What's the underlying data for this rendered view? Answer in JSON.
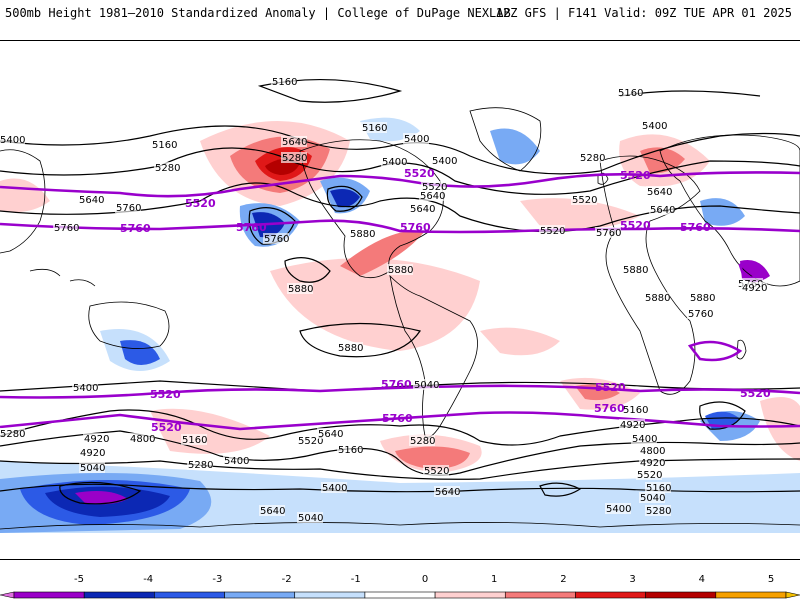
{
  "header": {
    "title": "500mb Height 1981–2010 Standardized Anomaly | College of DuPage NEXLAB",
    "run_info": "12Z GFS | F141 Valid: 09Z TUE APR 01 2025"
  },
  "colorbar": {
    "ticks": [
      "-5",
      "-4",
      "-3",
      "-2",
      "-1",
      "0",
      "1",
      "2",
      "3",
      "4",
      "5"
    ],
    "bins": [
      {
        "from": -5,
        "to": -4,
        "color": "#9a00c8"
      },
      {
        "from": -4,
        "to": -3,
        "color": "#0c28b4"
      },
      {
        "from": -3,
        "to": -2,
        "color": "#2c5ae6"
      },
      {
        "from": -2,
        "to": -1,
        "color": "#78aaf4"
      },
      {
        "from": -1,
        "to": 0,
        "color": "#c6e0fc"
      },
      {
        "from": 0,
        "to": 1,
        "color": "#ffffff"
      },
      {
        "from": 1,
        "to": 2,
        "color": "#ffd0d0"
      },
      {
        "from": 2,
        "to": 3,
        "color": "#f47a7a"
      },
      {
        "from": 3,
        "to": 4,
        "color": "#e01818"
      },
      {
        "from": 4,
        "to": 5,
        "color": "#b40000"
      },
      {
        "from": 5,
        "to": 6,
        "color": "#f5a000"
      }
    ],
    "under_color": "#e070e0",
    "over_color": "#f5c000"
  },
  "contour_labels": {
    "black": [
      "5160",
      "5160",
      "5400",
      "5400",
      "5160",
      "5400",
      "5640",
      "5280",
      "5160",
      "5280",
      "5400",
      "5400",
      "5520",
      "5640",
      "5640",
      "5280",
      "5520",
      "5640",
      "5760",
      "5880",
      "5880",
      "5880",
      "5880",
      "5880",
      "5880",
      "5880",
      "5760",
      "5760",
      "5760",
      "5640",
      "5760",
      "5520",
      "5640",
      "5760",
      "5400",
      "5040",
      "5160",
      "5280",
      "4920",
      "4800",
      "4920",
      "5040",
      "5160",
      "5280",
      "5400",
      "5520",
      "5640",
      "5160",
      "5280",
      "5520",
      "5640",
      "5400",
      "5040",
      "4920",
      "5400",
      "4800",
      "4920",
      "5520",
      "5280",
      "5640",
      "5400",
      "5160",
      "5040",
      "4920"
    ],
    "purple": [
      "5520",
      "5520",
      "5760",
      "5760",
      "5520",
      "5520",
      "5760",
      "5760",
      "5760",
      "5520",
      "5520",
      "5520",
      "5760",
      "5760",
      "5520"
    ]
  },
  "legend_colors": {
    "contour_5520_5760": "#9900cc",
    "contour_other": "#000000",
    "coastline": "#000000"
  }
}
